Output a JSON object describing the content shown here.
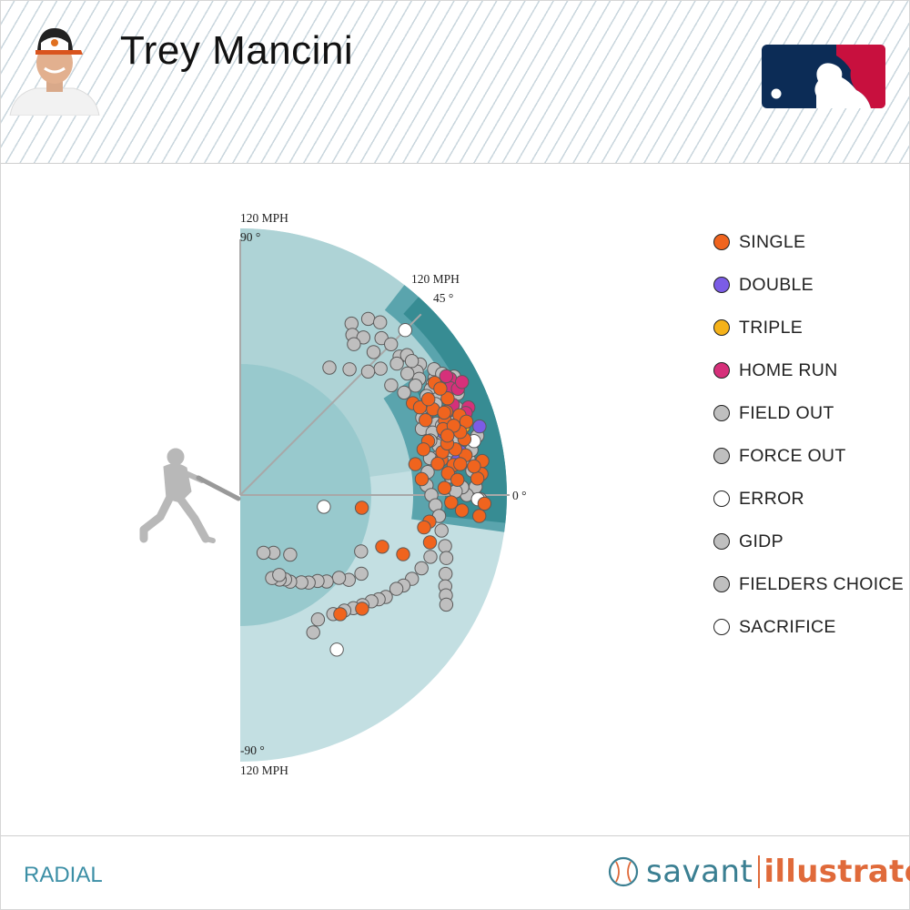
{
  "player": {
    "name": "Trey Mancini"
  },
  "footer": {
    "view_label": "RADIAL",
    "brand_savant": "savant",
    "brand_illustrator": "illustrator"
  },
  "colors": {
    "single": "#f0641e",
    "double": "#7b5ce6",
    "triple": "#f5b21a",
    "home_run": "#d6307a",
    "out": "#bfbfbf",
    "error": "#ffffff",
    "field_outer": "#c3dfe2",
    "field_inner": "#98c9cd",
    "field_mid": "#aed3d6",
    "field_barrel_light": "#5aa4ad",
    "field_barrel": "#378c93",
    "spokes": "#a8a8a8"
  },
  "chart_data": {
    "type": "scatter",
    "projection": "radial",
    "radial_axis": {
      "label": "MPH",
      "max": 120,
      "labels": [
        "120 MPH",
        "120 MPH",
        "120 MPH"
      ]
    },
    "angle_axis": {
      "unit": "°",
      "range": [
        -90,
        90
      ],
      "tick_labels": [
        "90 °",
        "45 °",
        "0 °",
        "-90 °"
      ]
    },
    "legend": [
      {
        "key": "single",
        "label": "SINGLE",
        "color": "#f0641e"
      },
      {
        "key": "double",
        "label": "DOUBLE",
        "color": "#7b5ce6"
      },
      {
        "key": "triple",
        "label": "TRIPLE",
        "color": "#f5b21a"
      },
      {
        "key": "home_run",
        "label": "HOME RUN",
        "color": "#d6307a"
      },
      {
        "key": "field_out",
        "label": "FIELD OUT",
        "color": "#bfbfbf"
      },
      {
        "key": "force_out",
        "label": "FORCE OUT",
        "color": "#bfbfbf"
      },
      {
        "key": "error",
        "label": "ERROR",
        "color": "#ffffff"
      },
      {
        "key": "gidp",
        "label": "GIDP",
        "color": "#bfbfbf"
      },
      {
        "key": "fielders_choice",
        "label": "FIELDERS CHOICE",
        "color": "#bfbfbf"
      },
      {
        "key": "sacrifice",
        "label": "SACRIFICE",
        "color": "#ffffff"
      }
    ],
    "series": [
      {
        "key": "single",
        "points": [
          [
            101,
            30
          ],
          [
            103,
            25
          ],
          [
            102,
            28
          ],
          [
            100,
            22
          ],
          [
            98,
            20
          ],
          [
            96,
            18
          ],
          [
            104,
            14
          ],
          [
            103,
            10
          ],
          [
            97,
            8
          ],
          [
            99,
            12
          ],
          [
            88,
            16
          ],
          [
            85,
            14
          ],
          [
            80,
            10
          ],
          [
            82,
            5
          ],
          [
            95,
            -2
          ],
          [
            100,
            -4
          ],
          [
            86,
            -8
          ],
          [
            84,
            -10
          ],
          [
            88,
            -14
          ],
          [
            78,
            -20
          ],
          [
            55,
            -6
          ],
          [
            75,
            -43
          ],
          [
            70,
            -50
          ],
          [
            68,
            -20
          ],
          [
            92,
            10
          ],
          [
            94,
            6
          ],
          [
            90,
            22
          ],
          [
            95,
            24
          ],
          [
            105,
            20
          ],
          [
            107,
            18
          ],
          [
            110,
            8
          ],
          [
            109,
            5
          ],
          [
            107,
            4
          ],
          [
            106,
            7
          ],
          [
            100,
            8
          ],
          [
            98,
            4
          ],
          [
            93,
            12
          ],
          [
            96,
            14
          ],
          [
            90,
            9
          ],
          [
            92,
            2
          ],
          [
            88,
            28
          ],
          [
            90,
            26
          ],
          [
            110,
            -2
          ],
          [
            108,
            -5
          ],
          [
            103,
            16
          ],
          [
            101,
            18
          ],
          [
            99,
            22
          ],
          [
            97,
            16
          ],
          [
            95,
            27
          ]
        ]
      },
      {
        "key": "double",
        "points": [
          [
            96,
            17
          ],
          [
            101,
            11
          ],
          [
            112,
            16
          ],
          [
            99,
            9
          ],
          [
            101,
            22
          ]
        ]
      },
      {
        "key": "triple",
        "points": [
          [
            105,
            17
          ]
        ]
      },
      {
        "key": "home_run",
        "points": [
          [
            108,
            29
          ],
          [
            106,
            27
          ],
          [
            109,
            26
          ],
          [
            112,
            27
          ],
          [
            110,
            21
          ],
          [
            104,
            23
          ],
          [
            108,
            20
          ],
          [
            107,
            30
          ]
        ]
      },
      {
        "key": "out",
        "points": [
          [
            98,
            54
          ],
          [
            92,
            57
          ],
          [
            88,
            55
          ],
          [
            100,
            51
          ],
          [
            95,
            48
          ],
          [
            96,
            45
          ],
          [
            88,
            47
          ],
          [
            90,
            52
          ],
          [
            85,
            53
          ],
          [
            95,
            41
          ],
          [
            98,
            40
          ],
          [
            92,
            40
          ],
          [
            100,
            36
          ],
          [
            97,
            35
          ],
          [
            96,
            33
          ],
          [
            93,
            32
          ],
          [
            102,
            31
          ],
          [
            100,
            30
          ],
          [
            98,
            29
          ],
          [
            95,
            28
          ],
          [
            99,
            26
          ],
          [
            97,
            25
          ],
          [
            93,
            24
          ],
          [
            91,
            21
          ],
          [
            89,
            23
          ],
          [
            87,
            20
          ],
          [
            94,
            20
          ],
          [
            96,
            19
          ],
          [
            98,
            18
          ],
          [
            100,
            17
          ],
          [
            103,
            19
          ],
          [
            105,
            22
          ],
          [
            99,
            15
          ],
          [
            95,
            13
          ],
          [
            93,
            15
          ],
          [
            91,
            11
          ],
          [
            87,
            11
          ],
          [
            85,
            7
          ],
          [
            84,
            3
          ],
          [
            86,
            0
          ],
          [
            88,
            -3
          ],
          [
            90,
            -6
          ],
          [
            92,
            -10
          ],
          [
            95,
            -14
          ],
          [
            97,
            -17
          ],
          [
            99,
            -21
          ],
          [
            101,
            -24
          ],
          [
            103,
            -26
          ],
          [
            105,
            -28
          ],
          [
            90,
            -18
          ],
          [
            88,
            -22
          ],
          [
            86,
            -26
          ],
          [
            84,
            -29
          ],
          [
            82,
            -31
          ],
          [
            80,
            -35
          ],
          [
            78,
            -37
          ],
          [
            76,
            -39
          ],
          [
            74,
            -42
          ],
          [
            72,
            -45
          ],
          [
            70,
            -48
          ],
          [
            68,
            -52
          ],
          [
            66,
            -58
          ],
          [
            70,
            -62
          ],
          [
            60,
            -25
          ],
          [
            65,
            -33
          ],
          [
            62,
            -38
          ],
          [
            58,
            -40
          ],
          [
            55,
            -45
          ],
          [
            52,
            -48
          ],
          [
            50,
            -52
          ],
          [
            48,
            -55
          ],
          [
            45,
            -60
          ],
          [
            43,
            -62
          ],
          [
            42,
            -65
          ],
          [
            40,
            -69
          ],
          [
            40,
            -64
          ],
          [
            35,
            -50
          ],
          [
            30,
            -60
          ],
          [
            28,
            -68
          ],
          [
            104,
            9
          ],
          [
            106,
            11
          ],
          [
            108,
            13
          ],
          [
            110,
            14
          ],
          [
            106,
            2
          ],
          [
            108,
            -1
          ],
          [
            102,
            0
          ],
          [
            100,
            2
          ],
          [
            97,
            1
          ],
          [
            95,
            5
          ],
          [
            94,
            11
          ],
          [
            92,
            14
          ],
          [
            105,
            6
          ],
          [
            93,
            36
          ],
          [
            98,
            38
          ],
          [
            104,
            33
          ],
          [
            106,
            31
          ],
          [
            110,
            29
          ],
          [
            108,
            25
          ],
          [
            103,
            21
          ],
          [
            101,
            14
          ],
          [
            97,
            12
          ],
          [
            95,
            17
          ],
          [
            91,
            18
          ],
          [
            89,
            16
          ],
          [
            87,
            32
          ],
          [
            84,
            36
          ],
          [
            85,
            42
          ],
          [
            80,
            44
          ],
          [
            75,
            49
          ],
          [
            70,
            55
          ]
        ]
      },
      {
        "key": "error",
        "points": [
          [
            105,
            45
          ],
          [
            102,
            18
          ],
          [
            107,
            -1
          ],
          [
            108,
            13
          ],
          [
            38,
            -8
          ],
          [
            82,
            -58
          ]
        ]
      }
    ]
  }
}
